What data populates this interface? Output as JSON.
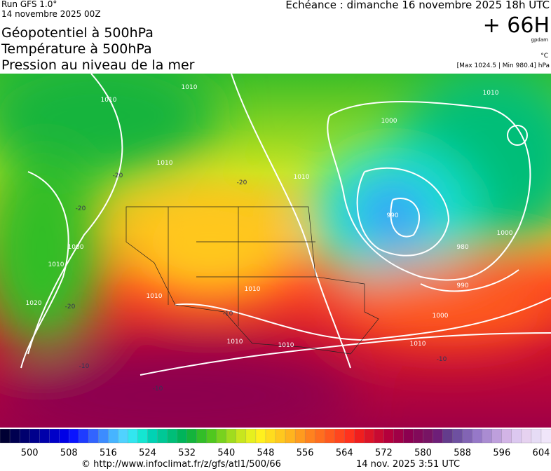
{
  "header": {
    "run": "Run GFS 1.0°",
    "run_date": "14 novembre 2025 00Z",
    "valid": "Echéance : dimanche 16 novembre 2025 18h UTC",
    "lead": "+ 66H",
    "unit_geo": "gpdam",
    "unit_temp": "°C",
    "pressure_range": "[Max 1024.5 | Min 980.4] hPa",
    "titles": [
      "Géopotentiel à 500hPa",
      "Température à 500hPa",
      "Pression au niveau de la mer"
    ]
  },
  "map": {
    "isobar_labels": [
      "1010",
      "1010",
      "1000",
      "1010",
      "1010",
      "990",
      "980",
      "990",
      "1000",
      "1010",
      "1000",
      "1010",
      "1010",
      "1010",
      "1010",
      "1020",
      "1010",
      "1000",
      "1010"
    ],
    "temp_labels": [
      "-20",
      "-20",
      "-20",
      "-20",
      "-10",
      "-10",
      "-10",
      "-10"
    ]
  },
  "colorbar": {
    "range": [
      494,
      606
    ],
    "labels": [
      500,
      508,
      516,
      524,
      532,
      540,
      548,
      556,
      564,
      572,
      580,
      588,
      596,
      604
    ],
    "colors": [
      "#000033",
      "#000050",
      "#00006e",
      "#00008c",
      "#0000aa",
      "#0000c8",
      "#0000e6",
      "#0a14ff",
      "#1e3cff",
      "#3264ff",
      "#3c8cff",
      "#46b4ff",
      "#50d2ff",
      "#32e6f0",
      "#14e6d2",
      "#00d2b4",
      "#00c896",
      "#00be78",
      "#00b45a",
      "#14b43c",
      "#32be28",
      "#50c81e",
      "#78d21e",
      "#a0dc1e",
      "#c8e61e",
      "#e6f01e",
      "#fff01e",
      "#ffdc1e",
      "#ffc81e",
      "#ffb41e",
      "#ff9b1e",
      "#ff821e",
      "#ff6e1e",
      "#ff5a1e",
      "#ff461e",
      "#ff321e",
      "#f01e1e",
      "#dc1428",
      "#c80a32",
      "#b4003c",
      "#a00046",
      "#8c0050",
      "#820a5a",
      "#781464",
      "#6e1e78",
      "#643c8c",
      "#6e50a0",
      "#8264b4",
      "#9678c8",
      "#aa8cd2",
      "#be9fdc",
      "#d2b4e6",
      "#dcc8f0",
      "#e6d2f0",
      "#e6dcf5",
      "#f0e6fa"
    ]
  },
  "footer": {
    "url": "© http://www.infoclimat.fr/z/gfs/atl1/500/66",
    "time": "14 nov. 2025  3:51 UTC"
  }
}
